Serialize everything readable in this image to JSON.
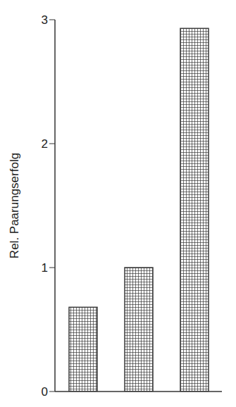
{
  "chart_data": {
    "type": "bar",
    "categories": [
      null,
      null,
      null
    ],
    "values": [
      0.68,
      1.0,
      2.93
    ],
    "color": "#3a3a3a",
    "ylim": [
      0,
      3
    ],
    "yticks": [
      0,
      1,
      2,
      3
    ],
    "ylabel": "Rel. Paarungserfolg",
    "tick_labels": "y",
    "grid": false
  }
}
